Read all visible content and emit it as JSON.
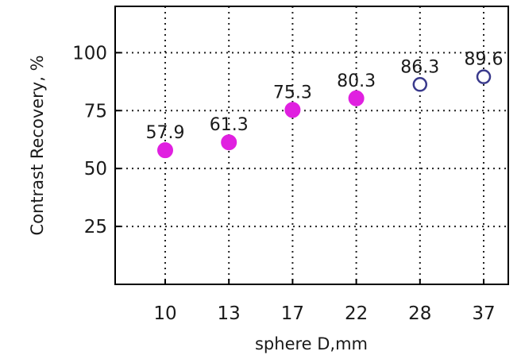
{
  "chart_data": {
    "type": "scatter",
    "title": "",
    "xlabel": "sphere D,mm",
    "ylabel": "Contrast Recovery, %",
    "categories": [
      "10",
      "13",
      "17",
      "22",
      "28",
      "37"
    ],
    "ylim": [
      0,
      120
    ],
    "yticks": [
      25,
      50,
      75,
      100
    ],
    "grid": true,
    "legend": "none",
    "series": [
      {
        "filled": true,
        "color": "#e020e0",
        "x": [
          "10",
          "13",
          "17",
          "22"
        ],
        "values": [
          57.9,
          61.3,
          75.3,
          80.3
        ],
        "labels": [
          "57.9",
          "61.3",
          "75.3",
          "80.3"
        ]
      },
      {
        "filled": false,
        "color": "#3a3a8c",
        "x": [
          "28",
          "37"
        ],
        "values": [
          86.3,
          89.6
        ],
        "labels": [
          "86.3",
          "89.6"
        ]
      }
    ]
  }
}
